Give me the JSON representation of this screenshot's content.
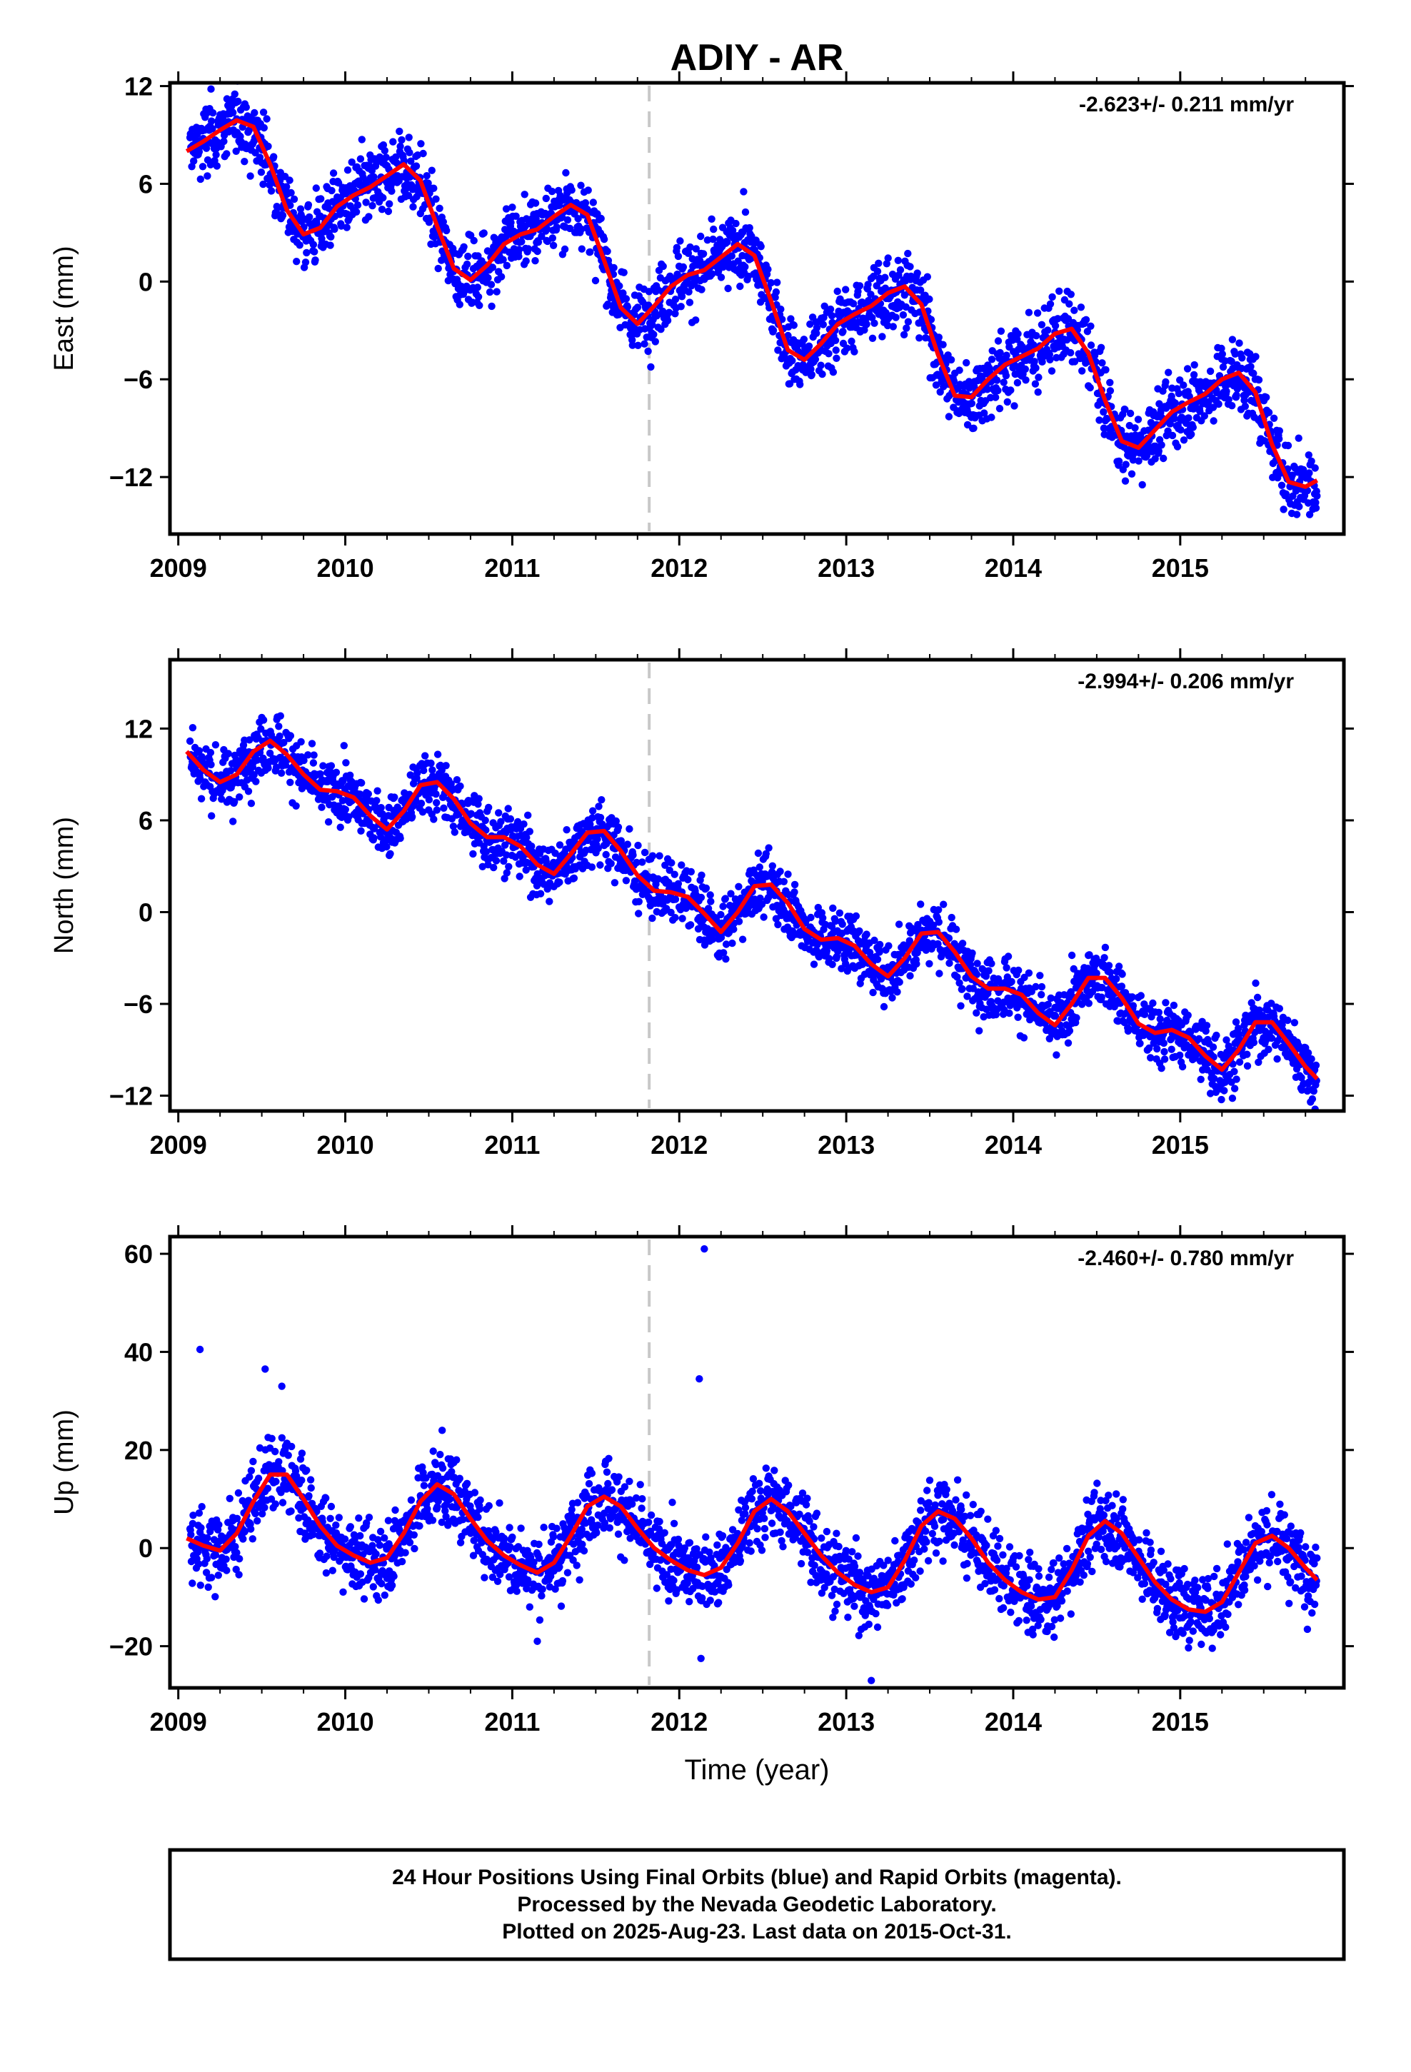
{
  "title": "ADIY - AR",
  "xlabel": "Time (year)",
  "footer": {
    "line1": "24 Hour Positions Using Final Orbits (blue) and Rapid Orbits (magenta).",
    "line2": "Processed by the Nevada Geodetic Laboratory.",
    "line3": "Plotted on 2025-Aug-23. Last data on 2015-Oct-31."
  },
  "colors": {
    "data": "#0000ff",
    "model": "#ff0000",
    "event": "#c8c8c8",
    "frame": "#000000"
  },
  "chart_data": [
    {
      "type": "scatter",
      "name": "east",
      "ylabel": "East (mm)",
      "rate": "-2.623+/- 0.211 mm/yr",
      "xlim": [
        2008.95,
        2015.98
      ],
      "ylim": [
        -15.5,
        12.2
      ],
      "yticks": [
        12,
        6,
        0,
        -6,
        -12
      ],
      "ytick_labels": [
        "12",
        "6",
        "0",
        "−6",
        "−12"
      ],
      "xticks": [
        2009,
        2010,
        2011,
        2012,
        2013,
        2014,
        2015
      ],
      "event_x": 2011.82,
      "model_x": [
        2009.05,
        2009.15,
        2009.25,
        2009.35,
        2009.45,
        2009.55,
        2009.65,
        2009.75,
        2009.85,
        2009.95,
        2010.05,
        2010.15,
        2010.25,
        2010.35,
        2010.45,
        2010.55,
        2010.65,
        2010.75,
        2010.85,
        2010.95,
        2011.05,
        2011.15,
        2011.25,
        2011.35,
        2011.45,
        2011.55,
        2011.65,
        2011.75,
        2011.85,
        2011.95,
        2012.05,
        2012.15,
        2012.25,
        2012.35,
        2012.45,
        2012.55,
        2012.65,
        2012.75,
        2012.85,
        2012.95,
        2013.05,
        2013.15,
        2013.25,
        2013.35,
        2013.45,
        2013.55,
        2013.65,
        2013.75,
        2013.85,
        2013.95,
        2014.05,
        2014.15,
        2014.25,
        2014.35,
        2014.45,
        2014.55,
        2014.65,
        2014.75,
        2014.85,
        2014.95,
        2015.05,
        2015.15,
        2015.25,
        2015.35,
        2015.45,
        2015.55,
        2015.65,
        2015.75,
        2015.82
      ],
      "model_y": [
        8.0,
        8.6,
        9.3,
        9.9,
        9.5,
        7.2,
        4.4,
        2.9,
        3.3,
        4.6,
        5.3,
        5.8,
        6.5,
        7.2,
        6.2,
        3.4,
        0.8,
        0.1,
        1.0,
        2.3,
        2.9,
        3.2,
        4.0,
        4.7,
        4.1,
        1.3,
        -1.6,
        -2.6,
        -1.5,
        -0.3,
        0.4,
        0.7,
        1.5,
        2.3,
        1.6,
        -1.2,
        -4.2,
        -4.8,
        -3.8,
        -2.6,
        -2.0,
        -1.5,
        -0.7,
        -0.3,
        -1.4,
        -4.5,
        -7.0,
        -7.1,
        -6.0,
        -5.1,
        -4.6,
        -4.1,
        -3.2,
        -2.9,
        -4.4,
        -7.3,
        -9.8,
        -10.2,
        -9.1,
        -8.0,
        -7.4,
        -6.9,
        -6.0,
        -5.6,
        -6.8,
        -10.0,
        -12.3,
        -12.6,
        -12.2
      ],
      "seasonal": {
        "amp1": 2.6,
        "phase1": 0.3,
        "amp2": 0.9,
        "phase2": 0.1
      },
      "noise": 1.1
    },
    {
      "type": "scatter",
      "name": "north",
      "ylabel": "North (mm)",
      "rate": "-2.994+/- 0.206 mm/yr",
      "xlim": [
        2008.95,
        2015.98
      ],
      "ylim": [
        -13.0,
        16.5
      ],
      "yticks": [
        12,
        6,
        0,
        -6,
        -12
      ],
      "ytick_labels": [
        "12",
        "6",
        "0",
        "−6",
        "−12"
      ],
      "xticks": [
        2009,
        2010,
        2011,
        2012,
        2013,
        2014,
        2015
      ],
      "event_x": 2011.82,
      "model_x": [
        2009.05,
        2009.15,
        2009.25,
        2009.35,
        2009.45,
        2009.55,
        2009.65,
        2009.75,
        2009.85,
        2009.95,
        2010.05,
        2010.15,
        2010.25,
        2010.35,
        2010.45,
        2010.55,
        2010.65,
        2010.75,
        2010.85,
        2010.95,
        2011.05,
        2011.15,
        2011.25,
        2011.35,
        2011.45,
        2011.55,
        2011.65,
        2011.75,
        2011.85,
        2011.95,
        2012.05,
        2012.15,
        2012.25,
        2012.35,
        2012.45,
        2012.55,
        2012.65,
        2012.75,
        2012.85,
        2012.95,
        2013.05,
        2013.15,
        2013.25,
        2013.35,
        2013.45,
        2013.55,
        2013.65,
        2013.75,
        2013.85,
        2013.95,
        2014.05,
        2014.15,
        2014.25,
        2014.35,
        2014.45,
        2014.55,
        2014.65,
        2014.75,
        2014.85,
        2014.95,
        2015.05,
        2015.15,
        2015.25,
        2015.35,
        2015.45,
        2015.55,
        2015.65,
        2015.75,
        2015.82
      ],
      "model_y": [
        10.5,
        9.3,
        8.5,
        9.0,
        10.5,
        11.2,
        10.3,
        9.0,
        8.0,
        7.9,
        7.5,
        6.3,
        5.4,
        6.6,
        8.3,
        8.5,
        7.4,
        5.8,
        4.9,
        4.9,
        4.3,
        3.1,
        2.5,
        3.8,
        5.2,
        5.3,
        4.0,
        2.4,
        1.4,
        1.3,
        1.0,
        -0.1,
        -1.3,
        0.0,
        1.7,
        1.8,
        0.6,
        -1.1,
        -1.8,
        -1.7,
        -2.2,
        -3.4,
        -4.2,
        -3.0,
        -1.4,
        -1.3,
        -2.6,
        -4.2,
        -5.0,
        -5.0,
        -5.4,
        -6.6,
        -7.4,
        -6.0,
        -4.3,
        -4.3,
        -5.6,
        -7.3,
        -7.9,
        -7.7,
        -8.2,
        -9.4,
        -10.3,
        -9.0,
        -7.2,
        -7.2,
        -8.6,
        -10.1,
        -10.9
      ],
      "seasonal": {
        "amp1": 1.3,
        "phase1": 0.55,
        "amp2": 0.5,
        "phase2": 0.35
      },
      "noise": 1.0
    },
    {
      "type": "scatter",
      "name": "up",
      "ylabel": "Up (mm)",
      "rate": "-2.460+/- 0.780 mm/yr",
      "xlim": [
        2008.95,
        2015.98
      ],
      "ylim": [
        -28.5,
        63.5
      ],
      "yticks": [
        60,
        40,
        20,
        0,
        -20
      ],
      "ytick_labels": [
        "60",
        "40",
        "20",
        "0",
        "−20"
      ],
      "xticks": [
        2009,
        2010,
        2011,
        2012,
        2013,
        2014,
        2015
      ],
      "event_x": 2011.82,
      "model_x": [
        2009.05,
        2009.15,
        2009.25,
        2009.35,
        2009.45,
        2009.55,
        2009.65,
        2009.75,
        2009.85,
        2009.95,
        2010.05,
        2010.15,
        2010.25,
        2010.35,
        2010.45,
        2010.55,
        2010.65,
        2010.75,
        2010.85,
        2010.95,
        2011.05,
        2011.15,
        2011.25,
        2011.35,
        2011.45,
        2011.55,
        2011.65,
        2011.75,
        2011.85,
        2011.95,
        2012.05,
        2012.15,
        2012.25,
        2012.35,
        2012.45,
        2012.55,
        2012.65,
        2012.75,
        2012.85,
        2012.95,
        2013.05,
        2013.15,
        2013.25,
        2013.35,
        2013.45,
        2013.55,
        2013.65,
        2013.75,
        2013.85,
        2013.95,
        2014.05,
        2014.15,
        2014.25,
        2014.35,
        2014.45,
        2014.55,
        2014.65,
        2014.75,
        2014.85,
        2014.95,
        2015.05,
        2015.15,
        2015.25,
        2015.35,
        2015.45,
        2015.55,
        2015.65,
        2015.75,
        2015.82
      ],
      "model_y": [
        2.0,
        0.5,
        -0.5,
        3.0,
        9.5,
        15.0,
        15.0,
        10.0,
        4.5,
        0.5,
        -1.5,
        -3.0,
        -2.0,
        3.0,
        9.5,
        13.0,
        11.0,
        6.0,
        1.5,
        -1.5,
        -3.5,
        -5.0,
        -3.0,
        2.5,
        8.5,
        10.5,
        8.5,
        4.0,
        0.0,
        -2.5,
        -4.5,
        -5.5,
        -4.0,
        1.0,
        7.5,
        10.0,
        7.5,
        3.0,
        -1.5,
        -5.0,
        -7.5,
        -9.0,
        -8.0,
        -2.5,
        4.5,
        7.5,
        6.0,
        2.0,
        -3.0,
        -6.5,
        -9.0,
        -10.5,
        -10.0,
        -4.5,
        2.5,
        5.5,
        3.0,
        -2.0,
        -7.0,
        -10.5,
        -12.5,
        -13.0,
        -11.0,
        -5.0,
        1.0,
        2.5,
        0.0,
        -4.0,
        -6.5
      ],
      "seasonal": {
        "amp1": 0,
        "phase1": 0,
        "amp2": 0,
        "phase2": 0
      },
      "noise": 3.8,
      "outliers": [
        [
          2009.13,
          40.5
        ],
        [
          2009.52,
          36.5
        ],
        [
          2012.12,
          34.5
        ],
        [
          2012.15,
          61.0
        ],
        [
          2013.15,
          -27.0
        ],
        [
          2009.62,
          33.0
        ],
        [
          2010.58,
          24.0
        ],
        [
          2012.13,
          -22.5
        ],
        [
          2011.15,
          -19.0
        ]
      ]
    }
  ]
}
